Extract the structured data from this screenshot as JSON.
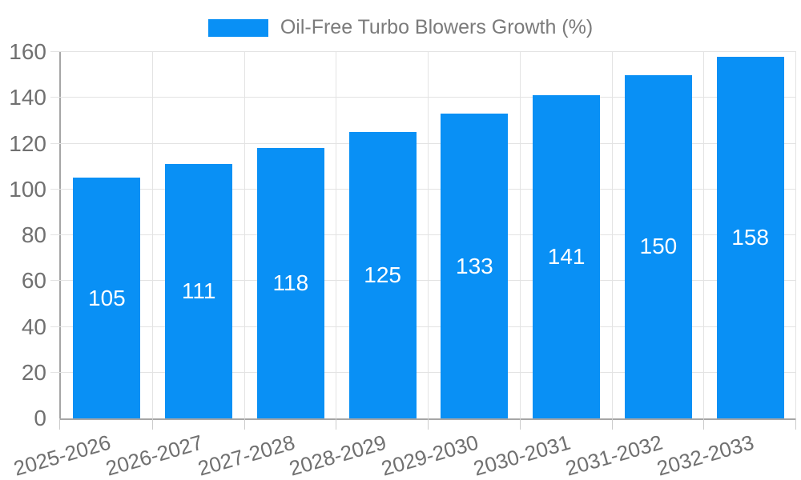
{
  "legend": {
    "label": "Oil-Free Turbo Blowers Growth (%)",
    "swatch_color": "#0990f5"
  },
  "chart_data": {
    "type": "bar",
    "title": "",
    "series_name": "Oil-Free Turbo Blowers Growth (%)",
    "categories": [
      "2025-2026",
      "2026-2027",
      "2027-2028",
      "2028-2029",
      "2029-2030",
      "2030-2031",
      "2031-2032",
      "2032-2033"
    ],
    "values": [
      105,
      111,
      118,
      125,
      133,
      141,
      150,
      158
    ],
    "bar_labels": [
      "105",
      "111",
      "118",
      "125",
      "133",
      "141",
      "150",
      "158"
    ],
    "xlabel": "",
    "ylabel": "",
    "ylim": [
      0,
      160
    ],
    "ytick_step": 20,
    "ytick_labels": [
      "0",
      "20",
      "40",
      "60",
      "80",
      "100",
      "120",
      "140",
      "160"
    ],
    "grid": true,
    "legend_position": "top-center",
    "colors": {
      "bar": "#0990f5",
      "bar_label_text": "#ffffff",
      "axis_text": "#707070",
      "legend_text": "#7b7b7b",
      "gridline": "#e3e3e3",
      "axis_line": "#a6a6a6"
    }
  }
}
